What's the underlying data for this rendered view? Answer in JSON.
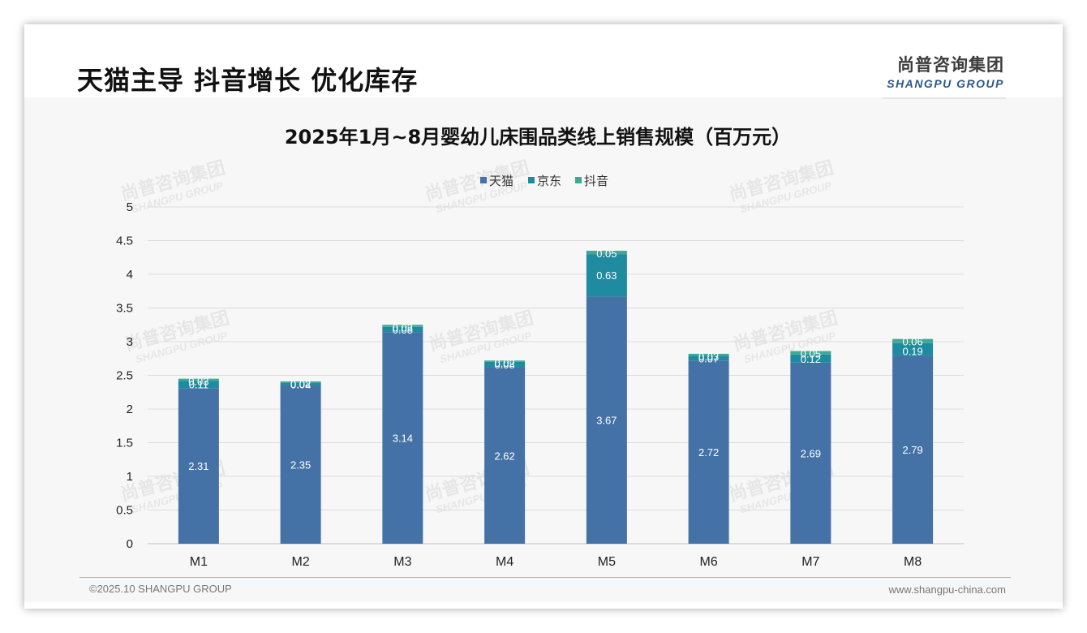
{
  "page": {
    "headline": "天猫主导 抖音增长 优化库存",
    "brand_cn": "尚普咨询集团",
    "brand_en": "SHANGPU GROUP",
    "footer_left": "©2025.10 SHANGPU GROUP",
    "footer_right": "www.shangpu-china.com",
    "watermark_cn": "尚普咨询集团",
    "watermark_en": "SHANGPU GROUP"
  },
  "chart_data": {
    "type": "bar",
    "stacked": true,
    "title": "2025年1月~8月婴幼儿床围品类线上销售规模（百万元）",
    "xlabel": "",
    "ylabel": "",
    "categories": [
      "M1",
      "M2",
      "M3",
      "M4",
      "M5",
      "M6",
      "M7",
      "M8"
    ],
    "ylim": [
      0,
      5
    ],
    "yticks": [
      "0",
      "0.5",
      "1",
      "1.5",
      "2",
      "2.5",
      "3",
      "3.5",
      "4",
      "4.5",
      "5"
    ],
    "legend_position": "top-center",
    "series": [
      {
        "name": "天猫",
        "color": "#4472a6",
        "values": [
          2.31,
          2.35,
          3.14,
          2.62,
          3.67,
          2.72,
          2.69,
          2.79
        ],
        "labels": [
          "2.31",
          "2.35",
          "3.14",
          "2.62",
          "3.67",
          "2.72",
          "2.69",
          "2.79"
        ]
      },
      {
        "name": "京东",
        "color": "#1e8ba0",
        "values": [
          0.11,
          0.04,
          0.08,
          0.08,
          0.63,
          0.07,
          0.12,
          0.19
        ],
        "labels": [
          "0.11",
          "0.04",
          "0.08",
          "0.08",
          "0.63",
          "0.07",
          "0.12",
          "0.19"
        ]
      },
      {
        "name": "抖音",
        "color": "#3daa96",
        "values": [
          0.03,
          0.02,
          0.03,
          0.02,
          0.05,
          0.03,
          0.05,
          0.06
        ],
        "labels": [
          "0.03",
          "0.02",
          "0.03",
          "0.02",
          "0.05",
          "0.03",
          "0.05",
          "0.06"
        ]
      }
    ]
  }
}
